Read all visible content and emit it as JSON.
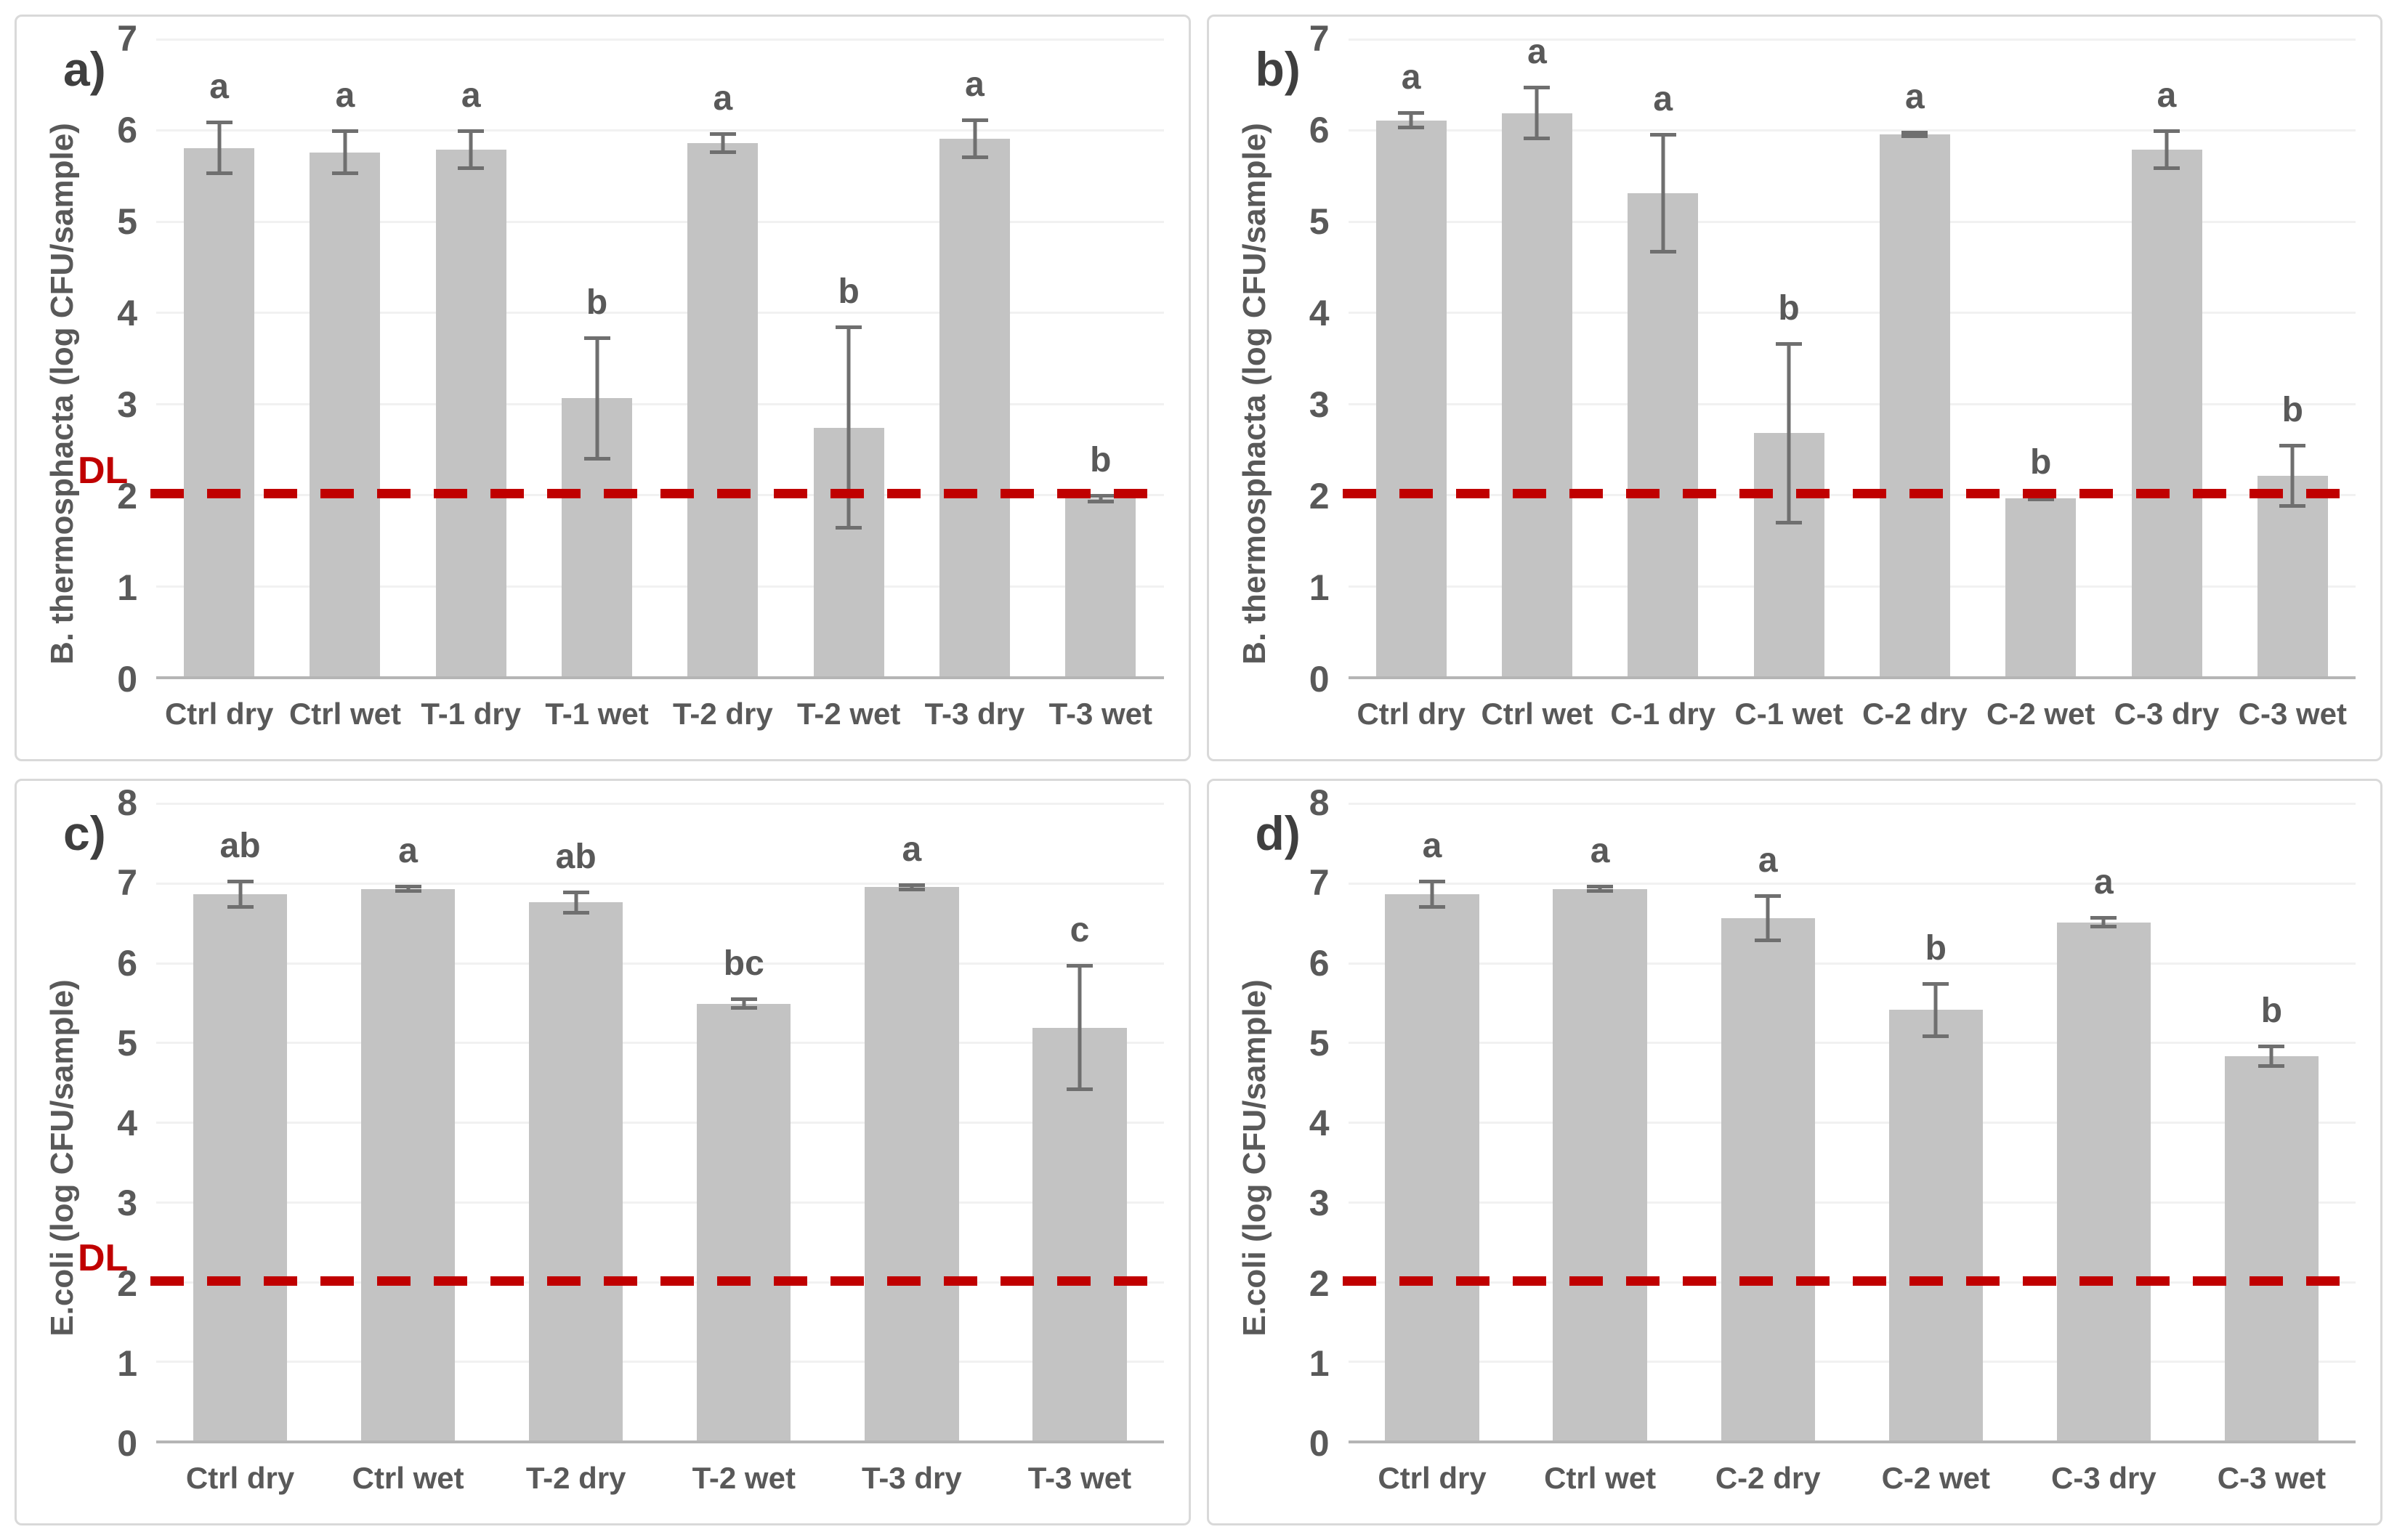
{
  "figure": {
    "dl_label": "DL",
    "colors": {
      "bar": "#c3c3c3",
      "error_bar": "#6f6f6f",
      "dl_line": "#c00000",
      "sig_letter": "#595959",
      "axis_text": "#595959",
      "panel_letter": "#3f3f3f",
      "panel_border": "#d9d9d9",
      "gridline": "#f1f1f1",
      "axis_line": "#b5b5b5"
    }
  },
  "chart_data": [
    {
      "type": "bar",
      "panel": "a)",
      "ylabel": "B. thermosphacta (log CFU/sample)",
      "xlabel": "",
      "ylim": [
        0,
        7
      ],
      "yticks": [
        "0",
        "1",
        "2",
        "3",
        "4",
        "5",
        "6",
        "7"
      ],
      "grid": true,
      "detection_limit": 2,
      "dl_label_visible": true,
      "categories": [
        "Ctrl dry",
        "Ctrl wet",
        "T-1 dry",
        "T-1 wet",
        "T-2 dry",
        "T-2 wet",
        "T-3 dry",
        "T-3 wet"
      ],
      "values": [
        5.8,
        5.75,
        5.78,
        3.05,
        5.85,
        2.73,
        5.9,
        1.95
      ],
      "errors": [
        0.3,
        0.25,
        0.22,
        0.68,
        0.12,
        1.12,
        0.22,
        0.05
      ],
      "sig_letters": [
        "a",
        "a",
        "a",
        "b",
        "a",
        "b",
        "a",
        "b"
      ]
    },
    {
      "type": "bar",
      "panel": "b)",
      "ylabel": "B. thermosphacta (log CFU/sample)",
      "xlabel": "",
      "ylim": [
        0,
        7
      ],
      "yticks": [
        "0",
        "1",
        "2",
        "3",
        "4",
        "5",
        "6",
        "7"
      ],
      "grid": true,
      "detection_limit": 2,
      "dl_label_visible": false,
      "categories": [
        "Ctrl dry",
        "Ctrl wet",
        "C-1 dry",
        "C-1 wet",
        "C-2 dry",
        "C-2 wet",
        "C-3 dry",
        "C-3 wet"
      ],
      "values": [
        6.1,
        6.18,
        5.3,
        2.67,
        5.95,
        1.95,
        5.78,
        2.2
      ],
      "errors": [
        0.1,
        0.3,
        0.66,
        1.0,
        0.04,
        0.03,
        0.22,
        0.35
      ],
      "sig_letters": [
        "a",
        "a",
        "a",
        "b",
        "a",
        "b",
        "a",
        "b"
      ]
    },
    {
      "type": "bar",
      "panel": "c)",
      "ylabel": "E.coli (log CFU/sample)",
      "xlabel": "",
      "ylim": [
        0,
        8
      ],
      "yticks": [
        "0",
        "1",
        "2",
        "3",
        "4",
        "5",
        "6",
        "7",
        "8"
      ],
      "grid": true,
      "detection_limit": 2,
      "dl_label_visible": true,
      "categories": [
        "Ctrl dry",
        "Ctrl wet",
        "T-2 dry",
        "T-2 wet",
        "T-3 dry",
        "T-3 wet"
      ],
      "values": [
        6.85,
        6.92,
        6.75,
        5.48,
        6.94,
        5.18
      ],
      "errors": [
        0.18,
        0.05,
        0.15,
        0.08,
        0.05,
        0.8
      ],
      "sig_letters": [
        "ab",
        "a",
        "ab",
        "bc",
        "a",
        "c"
      ]
    },
    {
      "type": "bar",
      "panel": "d)",
      "ylabel": "E.coli (log CFU/sample)",
      "xlabel": "",
      "ylim": [
        0,
        8
      ],
      "yticks": [
        "0",
        "1",
        "2",
        "3",
        "4",
        "5",
        "6",
        "7",
        "8"
      ],
      "grid": true,
      "detection_limit": 2,
      "dl_label_visible": false,
      "categories": [
        "Ctrl dry",
        "Ctrl wet",
        "C-2 dry",
        "C-2 wet",
        "C-3 dry",
        "C-3 wet"
      ],
      "values": [
        6.85,
        6.92,
        6.55,
        5.4,
        6.5,
        4.82
      ],
      "errors": [
        0.18,
        0.05,
        0.3,
        0.35,
        0.08,
        0.15
      ],
      "sig_letters": [
        "a",
        "a",
        "a",
        "b",
        "a",
        "b"
      ]
    }
  ]
}
